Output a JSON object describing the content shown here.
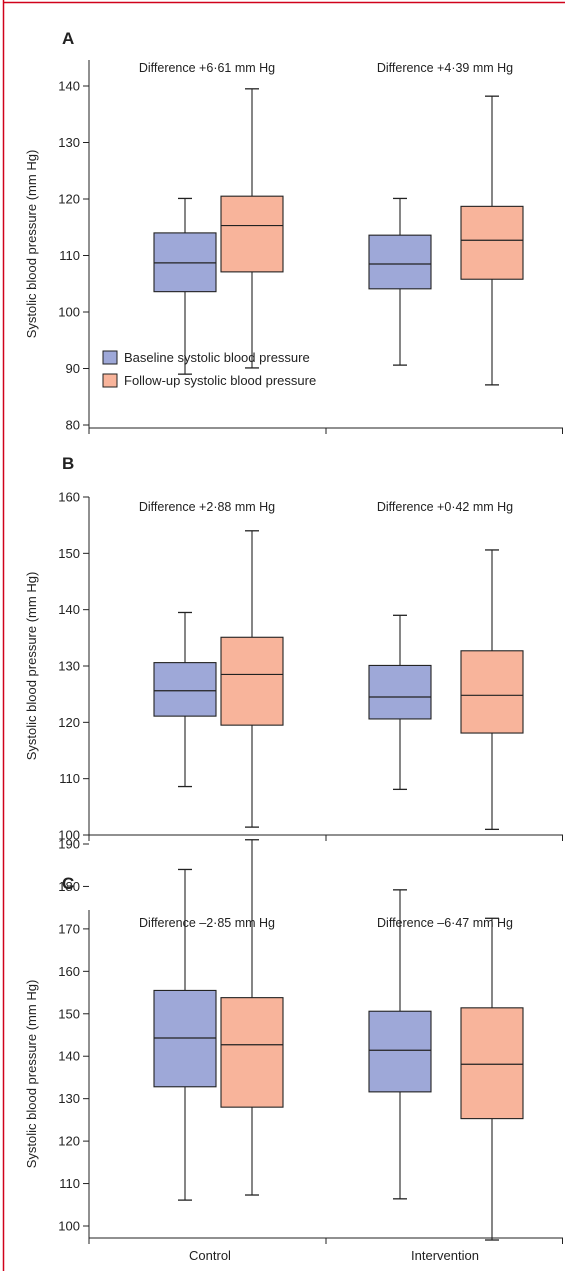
{
  "colors": {
    "baseline": "#9ea8d8",
    "followup": "#f8b49b",
    "frame": "#d0021b"
  },
  "chart_data": [
    {
      "type": "box",
      "panel": "A",
      "ylabel": "Systolic blood pressure (mm Hg)",
      "ylim": [
        80,
        140
      ],
      "yticks": [
        80,
        90,
        100,
        110,
        120,
        130,
        140
      ],
      "categories": [
        "Control",
        "Intervention"
      ],
      "show_category_labels": false,
      "differences": [
        "Difference +6·61 mm Hg",
        "Difference +4·39 mm Hg"
      ],
      "legend": {
        "placement": "bottom-left",
        "entries": [
          "Baseline systolic blood pressure",
          "Follow-up systolic blood pressure"
        ]
      },
      "series": [
        {
          "name": "Baseline systolic blood pressure",
          "color_key": "baseline",
          "boxes": [
            {
              "min": 89,
              "q1": 103.6,
              "median": 108.7,
              "q3": 114,
              "max": 120.1
            },
            {
              "min": 90.6,
              "q1": 104.1,
              "median": 108.5,
              "q3": 113.6,
              "max": 120.1
            }
          ]
        },
        {
          "name": "Follow-up systolic blood pressure",
          "color_key": "followup",
          "boxes": [
            {
              "min": 90.1,
              "q1": 107.1,
              "median": 115.3,
              "q3": 120.5,
              "max": 139.5
            },
            {
              "min": 87.1,
              "q1": 105.8,
              "median": 112.7,
              "q3": 118.7,
              "max": 138.2
            }
          ]
        }
      ]
    },
    {
      "type": "box",
      "panel": "B",
      "ylabel": "Systolic blood pressure (mm Hg)",
      "ylim": [
        100,
        160
      ],
      "yticks": [
        100,
        110,
        120,
        130,
        140,
        150,
        160
      ],
      "categories": [
        "Control",
        "Intervention"
      ],
      "show_category_labels": false,
      "differences": [
        "Difference +2·88 mm Hg",
        "Difference +0·42 mm Hg"
      ],
      "series": [
        {
          "name": "Baseline systolic blood pressure",
          "color_key": "baseline",
          "boxes": [
            {
              "min": 108.6,
              "q1": 121.1,
              "median": 125.6,
              "q3": 130.6,
              "max": 139.5
            },
            {
              "min": 108.1,
              "q1": 120.6,
              "median": 124.5,
              "q3": 130.1,
              "max": 139
            }
          ]
        },
        {
          "name": "Follow-up systolic blood pressure",
          "color_key": "followup",
          "boxes": [
            {
              "min": 101.4,
              "q1": 119.5,
              "median": 128.5,
              "q3": 135.1,
              "max": 154
            },
            {
              "min": 101,
              "q1": 118.1,
              "median": 124.8,
              "q3": 132.7,
              "max": 150.6
            }
          ]
        }
      ]
    },
    {
      "type": "box",
      "panel": "C",
      "ylabel": "Systolic blood pressure (mm Hg)",
      "ylim": [
        95,
        190
      ],
      "yticks": [
        100,
        110,
        120,
        130,
        140,
        150,
        160,
        170,
        180,
        190
      ],
      "categories": [
        "Control",
        "Intervention"
      ],
      "show_category_labels": true,
      "differences": [
        "Difference –2·85 mm Hg",
        "Difference –6·47 mm Hg"
      ],
      "series": [
        {
          "name": "Baseline systolic blood pressure",
          "color_key": "baseline",
          "boxes": [
            {
              "min": 106.1,
              "q1": 132.8,
              "median": 144.3,
              "q3": 155.5,
              "max": 184
            },
            {
              "min": 106.4,
              "q1": 131.6,
              "median": 141.4,
              "q3": 150.6,
              "max": 179.2
            }
          ]
        },
        {
          "name": "Follow-up systolic blood pressure",
          "color_key": "followup",
          "boxes": [
            {
              "min": 107.3,
              "q1": 128,
              "median": 142.7,
              "q3": 153.8,
              "max": 191
            },
            {
              "min": 96.7,
              "q1": 125.3,
              "median": 138.1,
              "q3": 151.4,
              "max": 172.5
            }
          ]
        }
      ]
    }
  ]
}
